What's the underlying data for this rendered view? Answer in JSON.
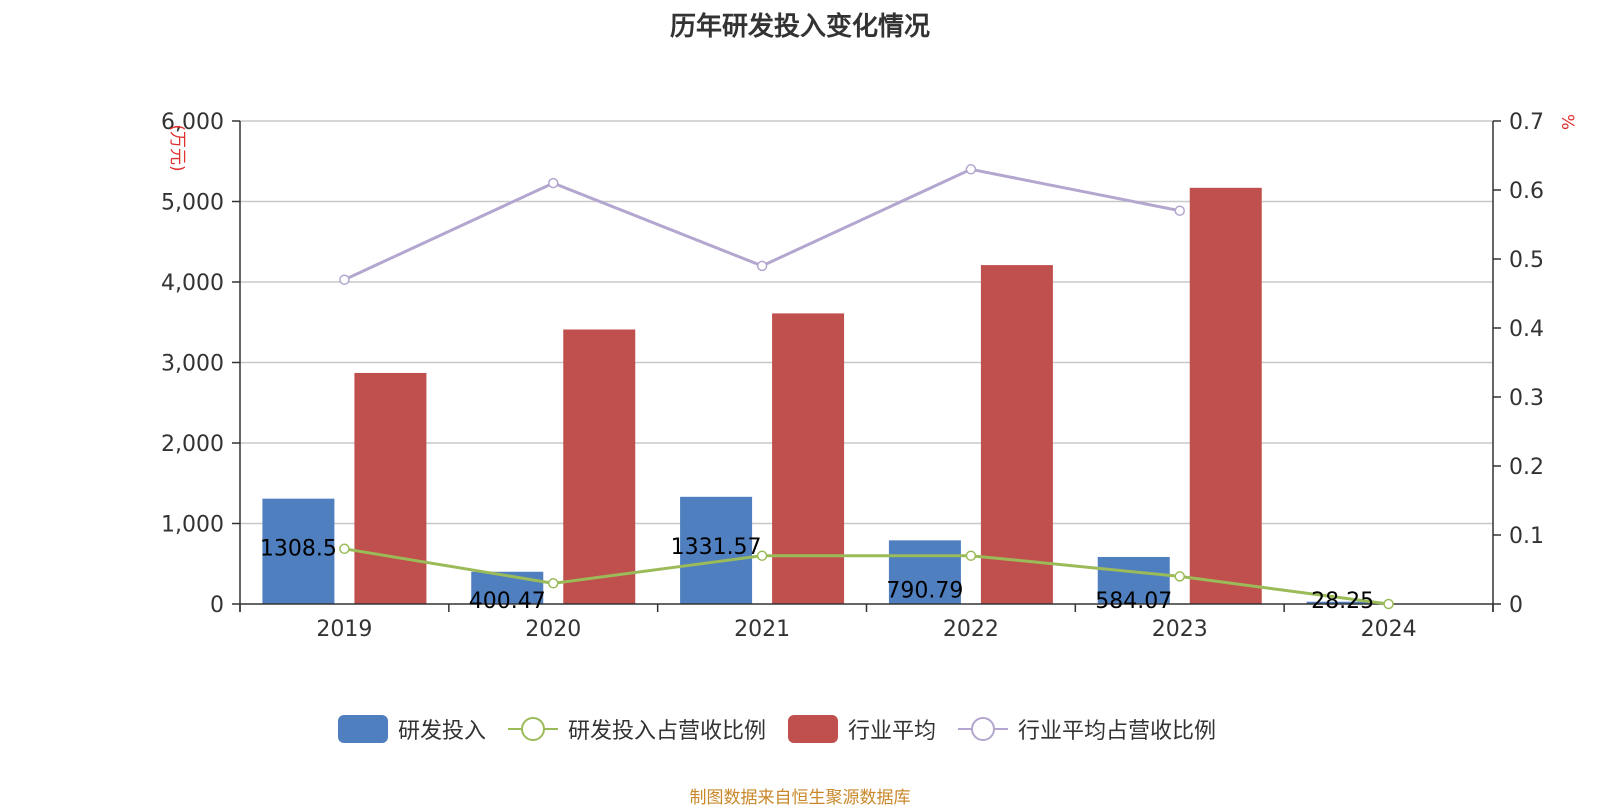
{
  "title": "历年研发投入变化情况",
  "source": "制图数据来自恒生聚源数据库",
  "chart_data": {
    "type": "bar",
    "categories": [
      "2019",
      "2020",
      "2021",
      "2022",
      "2023",
      "2024"
    ],
    "y_left": {
      "label": "(万元)",
      "min": 0,
      "max": 6000,
      "ticks": [
        "0",
        "1,000",
        "2,000",
        "3,000",
        "4,000",
        "5,000",
        "6,000"
      ]
    },
    "y_right": {
      "label": "%",
      "min": 0,
      "max": 0.7,
      "ticks": [
        "0",
        "0.1",
        "0.2",
        "0.3",
        "0.4",
        "0.5",
        "0.6",
        "0.7"
      ]
    },
    "grid": true,
    "legend_position": "bottom",
    "series": [
      {
        "name": "研发投入",
        "type": "bar",
        "axis": "left",
        "color": "#4f7fbf",
        "values": [
          1308.5,
          400.47,
          1331.57,
          790.79,
          584.07,
          28.25
        ],
        "labels": [
          "1308.5",
          "400.47",
          "1331.57",
          "790.79",
          "584.07",
          "28.25"
        ]
      },
      {
        "name": "研发投入占营收比例",
        "type": "line",
        "axis": "right",
        "color": "#9bbb59",
        "values": [
          0.08,
          0.03,
          0.07,
          0.07,
          0.04,
          0.0
        ]
      },
      {
        "name": "行业平均",
        "type": "bar",
        "axis": "left",
        "color": "#c0504d",
        "values": [
          2870,
          3410,
          3610,
          4210,
          5170,
          null
        ]
      },
      {
        "name": "行业平均占营收比例",
        "type": "line",
        "axis": "right",
        "color": "#b3a6cf",
        "values": [
          0.47,
          0.61,
          0.49,
          0.63,
          0.57,
          null
        ]
      }
    ]
  }
}
